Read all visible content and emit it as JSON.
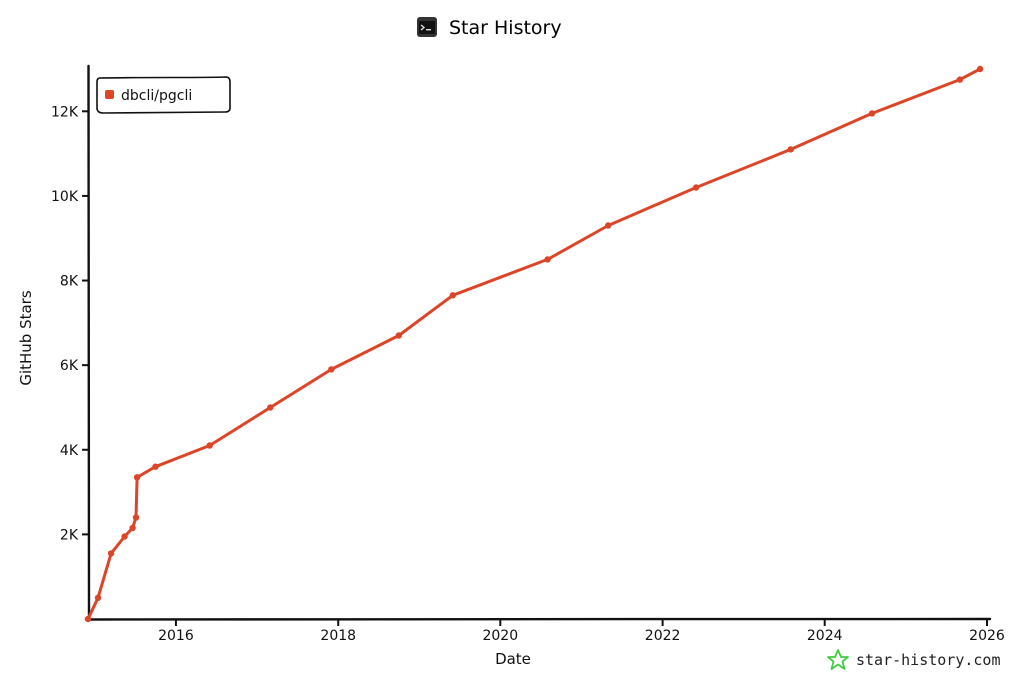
{
  "chart_data": {
    "type": "line",
    "title": "Star History",
    "xlabel": "Date",
    "ylabel": "GitHub Stars",
    "x_ticks": [
      "2016",
      "2018",
      "2020",
      "2022",
      "2024",
      "2026"
    ],
    "y_ticks": [
      "2K",
      "4K",
      "6K",
      "8K",
      "10K",
      "12K"
    ],
    "xlim": [
      "2014-12-01",
      "2026-01-01"
    ],
    "ylim": [
      0,
      13000
    ],
    "grid": false,
    "legend_placement": "top-left",
    "series": [
      {
        "name": "dbcli/pgcli",
        "color": "#dd4528",
        "points": [
          [
            "2014-12-01",
            0
          ],
          [
            "2015-01-15",
            500
          ],
          [
            "2015-03-15",
            1550
          ],
          [
            "2015-05-15",
            1950
          ],
          [
            "2015-06-20",
            2150
          ],
          [
            "2015-07-05",
            2400
          ],
          [
            "2015-07-10",
            3350
          ],
          [
            "2015-10-01",
            3600
          ],
          [
            "2016-06-01",
            4100
          ],
          [
            "2017-03-01",
            5000
          ],
          [
            "2017-12-01",
            5900
          ],
          [
            "2018-10-01",
            6700
          ],
          [
            "2019-06-01",
            7650
          ],
          [
            "2020-08-01",
            8500
          ],
          [
            "2021-05-01",
            9300
          ],
          [
            "2022-06-01",
            10200
          ],
          [
            "2023-08-01",
            11100
          ],
          [
            "2024-08-01",
            11950
          ],
          [
            "2025-09-01",
            12750
          ],
          [
            "2025-12-01",
            13000
          ]
        ]
      }
    ]
  },
  "watermark": "star-history.com",
  "colors": {
    "axis": "#111111",
    "series": "#dd4528",
    "watermark_icon": "#3ecf3e"
  },
  "icons": {
    "title_icon": "terminal-icon",
    "watermark_icon": "star-outline-icon"
  }
}
